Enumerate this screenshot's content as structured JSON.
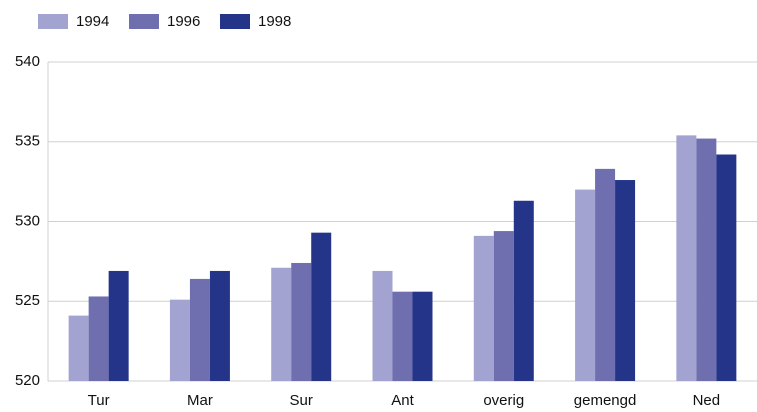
{
  "chart_data": {
    "type": "bar",
    "categories": [
      "Tur",
      "Mar",
      "Sur",
      "Ant",
      "overig",
      "gemengd",
      "Ned"
    ],
    "series": [
      {
        "name": "1994",
        "color": "#a3a3d1",
        "values": [
          524.1,
          525.1,
          527.1,
          526.9,
          529.1,
          532.0,
          535.4
        ]
      },
      {
        "name": "1996",
        "color": "#6f6fb0",
        "values": [
          525.3,
          526.4,
          527.4,
          525.6,
          529.4,
          533.3,
          535.2
        ]
      },
      {
        "name": "1998",
        "color": "#243489",
        "values": [
          526.9,
          526.9,
          529.3,
          525.6,
          531.3,
          532.6,
          534.2
        ]
      }
    ],
    "ylim": [
      520,
      540
    ],
    "yticks": [
      520,
      525,
      530,
      535,
      540
    ],
    "grid": true,
    "legend": "top-left"
  }
}
